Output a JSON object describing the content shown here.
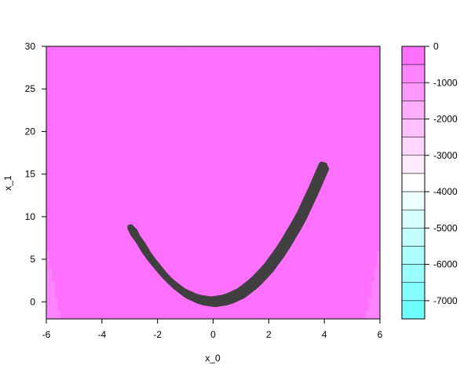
{
  "chart_data": {
    "type": "contour-scatter",
    "xlabel": "x_0",
    "ylabel": "x_1",
    "xlim": [
      -6,
      6
    ],
    "ylim": [
      -2,
      30
    ],
    "xticks": [
      -6,
      -4,
      -2,
      0,
      2,
      4,
      6
    ],
    "yticks": [
      0,
      5,
      10,
      15,
      20,
      25,
      30
    ],
    "contour": {
      "function": "log-density of banana distribution: -(x_1 - x_0^2)^2 / 2 - x_0^2 / 2 (scaled)",
      "levels": [
        0,
        -500,
        -1000,
        -1500,
        -2000,
        -2500,
        -3000,
        -3500,
        -4000,
        -4500,
        -5000,
        -5500,
        -6000,
        -6500,
        -7000,
        -7500
      ],
      "colorbar_ticks": [
        0,
        -1000,
        -2000,
        -3000,
        -4000,
        -5000,
        -6000,
        -7000
      ],
      "colors": {
        "high": "#ff66ff",
        "mid": "#ffffff",
        "low": "#66ffff"
      }
    },
    "scatter": {
      "color": "#404040",
      "description_curve": "points along x_1 = x_0^2",
      "x_range": [
        -2.9,
        4.1
      ],
      "points": [
        [
          -2.9,
          8.5
        ],
        [
          -2.8,
          7.8
        ],
        [
          -2.6,
          6.9
        ],
        [
          -2.4,
          5.8
        ],
        [
          -2.2,
          4.9
        ],
        [
          -2.0,
          4.1
        ],
        [
          -1.8,
          3.3
        ],
        [
          -1.6,
          2.6
        ],
        [
          -1.4,
          2.0
        ],
        [
          -1.2,
          1.5
        ],
        [
          -1.0,
          1.0
        ],
        [
          -0.8,
          0.7
        ],
        [
          -0.6,
          0.4
        ],
        [
          -0.4,
          0.2
        ],
        [
          -0.2,
          0.1
        ],
        [
          0.0,
          0.0
        ],
        [
          0.2,
          0.1
        ],
        [
          0.4,
          0.2
        ],
        [
          0.6,
          0.4
        ],
        [
          0.8,
          0.7
        ],
        [
          1.0,
          1.0
        ],
        [
          1.2,
          1.5
        ],
        [
          1.4,
          2.0
        ],
        [
          1.6,
          2.6
        ],
        [
          1.8,
          3.3
        ],
        [
          2.0,
          4.0
        ],
        [
          2.2,
          4.9
        ],
        [
          2.4,
          5.8
        ],
        [
          2.6,
          6.8
        ],
        [
          2.8,
          7.9
        ],
        [
          3.0,
          9.0
        ],
        [
          3.2,
          10.2
        ],
        [
          3.4,
          11.6
        ],
        [
          3.6,
          13.0
        ],
        [
          3.8,
          14.5
        ],
        [
          4.0,
          16.0
        ]
      ]
    }
  }
}
